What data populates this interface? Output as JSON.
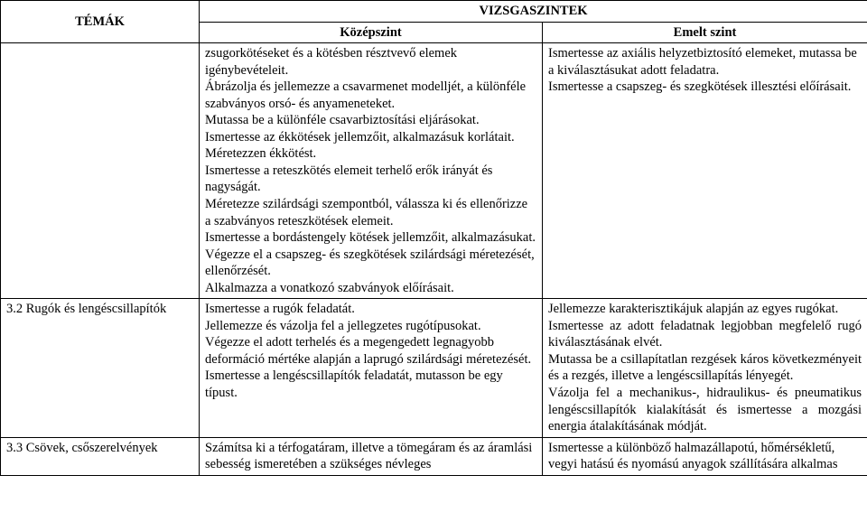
{
  "headers": {
    "temak": "TÉMÁK",
    "vizsgaszintek": "VIZSGASZINTEK",
    "kozepszint": "Középszint",
    "emeltszint": "Emelt szint"
  },
  "rows": [
    {
      "topic": "",
      "kozep": "zsugorkötéseket és a kötésben résztvevő elemek igénybevételeit.\nÁbrázolja és jellemezze a csavarmenet modelljét, a különféle szabványos orsó- és anyameneteket.\nMutassa be a különféle csavarbiztosítási eljárásokat.\nIsmertesse az ékkötések jellemzőit, alkalmazásuk korlátait.\nMéretezzen ékkötést.\nIsmertesse a reteszkötés elemeit terhelő erők irányát és nagyságát.\nMéretezze szilárdsági szempontból, válassza ki és ellenőrizze a szabványos reteszkötések elemeit.\nIsmertesse a bordástengely kötések jellemzőit, alkalmazásukat.\nVégezze el a csapszeg- és szegkötések szilárdsági méretezését, ellenőrzését.\nAlkalmazza a vonatkozó szabványok előírásait.",
      "emelt": "Ismertesse az axiális helyzetbiztosító elemeket, mutassa be a kiválasztásukat adott feladatra.\nIsmertesse a csapszeg- és szegkötések illesztési előírásait."
    },
    {
      "topic": "3.2 Rugók és lengéscsillapítók",
      "kozep": "Ismertesse a rugók feladatát.\nJellemezze és vázolja fel a jellegzetes rugótípusokat.\nVégezze el adott terhelés és a megengedett legnagyobb deformáció mértéke alapján a laprugó szilárdsági méretezését.\nIsmertesse a lengéscsillapítók feladatát, mutasson be egy típust.",
      "emelt": "Jellemezze karakterisztikájuk alapján az egyes rugókat.\nIsmertesse az adott feladatnak legjobban megfelelő rugó kiválasztásának elvét.\nMutassa be a csillapítatlan rezgések káros következményeit és a rezgés, illetve a lengéscsillapítás lényegét.\nVázolja fel a mechanikus-, hidraulikus- és pneumatikus lengéscsillapítók kialakítását és ismertesse a mozgási energia átalakításának módját."
    },
    {
      "topic": "3.3 Csövek, csőszerelvények",
      "kozep": "Számítsa ki a térfogatáram, illetve a tömegáram és az áramlási sebesség ismeretében a szükséges névleges",
      "emelt": "Ismertesse a különböző halmazállapotú, hőmérsékletű, vegyi hatású és nyomású anyagok szállítására alkalmas"
    }
  ]
}
